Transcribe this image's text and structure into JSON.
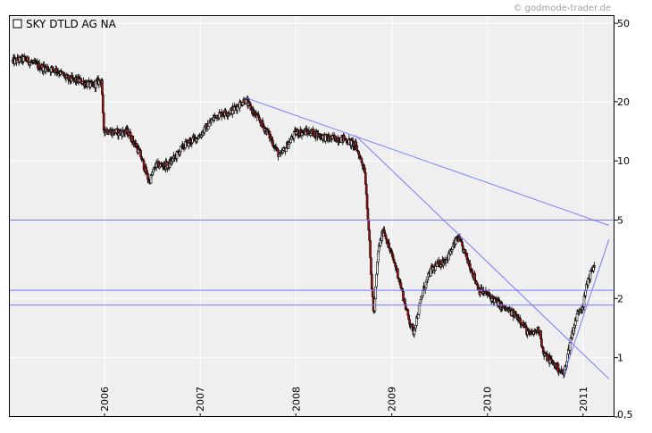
{
  "watermark": "© godmode-trader.de",
  "chart_data": {
    "type": "candlestick",
    "title": "SKY DTLD AG NA",
    "legend_placement": "top-left",
    "y_scale": "log",
    "ylim": [
      0.5,
      55
    ],
    "y_ticks": [
      {
        "value": 0.5,
        "label": "0,5"
      },
      {
        "value": 1,
        "label": "1"
      },
      {
        "value": 2,
        "label": "2"
      },
      {
        "value": 5,
        "label": "5"
      },
      {
        "value": 10,
        "label": "10"
      },
      {
        "value": 20,
        "label": "20"
      },
      {
        "value": 50,
        "label": "50"
      }
    ],
    "xlim": [
      "2005-01-01",
      "2011-05-01"
    ],
    "x_ticks": [
      {
        "value": "2006-01-01",
        "label": "2006"
      },
      {
        "value": "2007-01-01",
        "label": "2007"
      },
      {
        "value": "2008-01-01",
        "label": "2008"
      },
      {
        "value": "2009-01-01",
        "label": "2009"
      },
      {
        "value": "2010-01-01",
        "label": "2010"
      },
      {
        "value": "2011-01-01",
        "label": "2011"
      }
    ],
    "grid": true,
    "up_color": "#ffffff",
    "down_color": "#b01010",
    "price_path": [
      [
        "2005-01-15",
        32
      ],
      [
        "2005-03-01",
        33
      ],
      [
        "2005-05-01",
        30
      ],
      [
        "2005-07-01",
        29
      ],
      [
        "2005-08-15",
        26
      ],
      [
        "2005-10-01",
        25.5
      ],
      [
        "2005-11-15",
        24
      ],
      [
        "2005-12-20",
        26
      ],
      [
        "2005-12-28",
        14.5
      ],
      [
        "2006-02-01",
        14
      ],
      [
        "2006-04-01",
        14
      ],
      [
        "2006-05-15",
        11
      ],
      [
        "2006-06-20",
        7.8
      ],
      [
        "2006-07-15",
        9.5
      ],
      [
        "2006-09-01",
        9.5
      ],
      [
        "2006-11-01",
        12
      ],
      [
        "2007-01-01",
        13.5
      ],
      [
        "2007-03-01",
        17
      ],
      [
        "2007-05-01",
        18
      ],
      [
        "2007-06-20",
        20.5
      ],
      [
        "2007-08-01",
        17
      ],
      [
        "2007-09-15",
        14
      ],
      [
        "2007-11-01",
        10.5
      ],
      [
        "2008-01-01",
        14
      ],
      [
        "2008-03-01",
        14
      ],
      [
        "2008-05-01",
        13
      ],
      [
        "2008-07-01",
        13
      ],
      [
        "2008-08-15",
        12
      ],
      [
        "2008-09-20",
        9
      ],
      [
        "2008-10-05",
        4.5
      ],
      [
        "2008-10-15",
        2.5
      ],
      [
        "2008-10-25",
        1.6
      ],
      [
        "2008-11-10",
        3.5
      ],
      [
        "2008-12-01",
        4.5
      ],
      [
        "2008-12-25",
        3.5
      ],
      [
        "2009-01-20",
        2.8
      ],
      [
        "2009-03-05",
        1.6
      ],
      [
        "2009-03-25",
        1.35
      ],
      [
        "2009-05-01",
        2.2
      ],
      [
        "2009-06-01",
        2.8
      ],
      [
        "2009-08-01",
        3.2
      ],
      [
        "2009-09-10",
        4.1
      ],
      [
        "2009-10-15",
        3.2
      ],
      [
        "2009-12-01",
        2.2
      ],
      [
        "2010-01-01",
        2.1
      ],
      [
        "2010-03-01",
        1.8
      ],
      [
        "2010-05-01",
        1.6
      ],
      [
        "2010-06-10",
        1.3
      ],
      [
        "2010-07-20",
        1.4
      ],
      [
        "2010-08-01",
        1.05
      ],
      [
        "2010-09-15",
        0.92
      ],
      [
        "2010-10-20",
        0.82
      ],
      [
        "2010-11-15",
        1.25
      ],
      [
        "2010-12-15",
        1.75
      ],
      [
        "2011-01-01",
        1.85
      ],
      [
        "2011-01-20",
        2.5
      ],
      [
        "2011-02-15",
        3.0
      ]
    ],
    "horizontal_lines": [
      5.0,
      2.2,
      1.85
    ],
    "trend_lines": [
      {
        "from": [
          "2007-06-20",
          21
        ],
        "to": [
          "2011-04-10",
          4.7
        ]
      },
      {
        "from": [
          "2008-08-15",
          13.5
        ],
        "to": [
          "2011-04-10",
          0.78
        ]
      },
      {
        "from": [
          "2010-10-20",
          0.82
        ],
        "to": [
          "2011-04-10",
          4.0
        ]
      }
    ],
    "trend_color": "#7b7bff"
  }
}
